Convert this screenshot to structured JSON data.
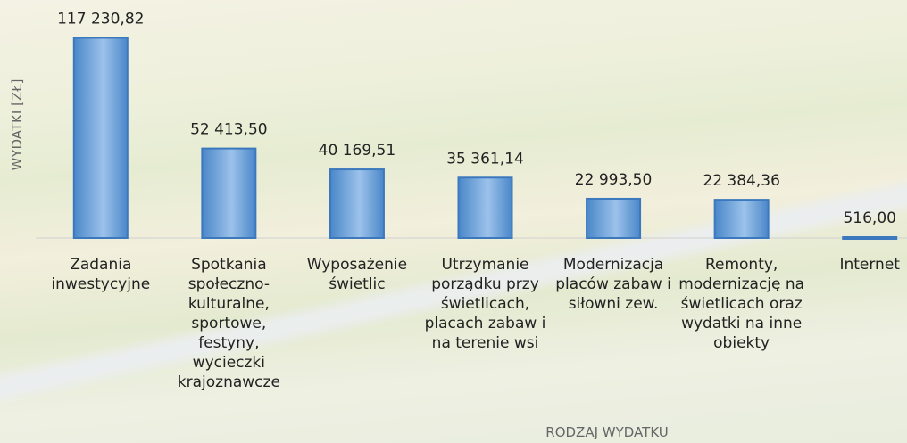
{
  "chart_data": {
    "type": "bar",
    "categories": [
      "Zadania inwestycyjne",
      "Spotkania społeczno-kulturalne, sportowe, festyny, wycieczki krajoznawcze",
      "Wyposażenie świetlic",
      "Utrzymanie porządku przy świetlicach, placach zabaw i na terenie wsi",
      "Modernizacja placów zabaw i siłowni zew.",
      "Remonty, modernizację na świetlicach oraz wydatki na inne obiekty",
      "Internet"
    ],
    "values": [
      117230.82,
      52413.5,
      40169.51,
      35361.14,
      22993.5,
      22384.36,
      516.0
    ],
    "value_labels": [
      "117 230,82",
      "52 413,50",
      "40 169,51",
      "35 361,14",
      "22 993,50",
      "22 384,36",
      "516,00"
    ],
    "color": "#4a87c9",
    "ylim": [
      0,
      130000
    ],
    "y_label": "WYDATKI [ZŁ]",
    "x_label": "RODZAJ WYDATKU"
  }
}
